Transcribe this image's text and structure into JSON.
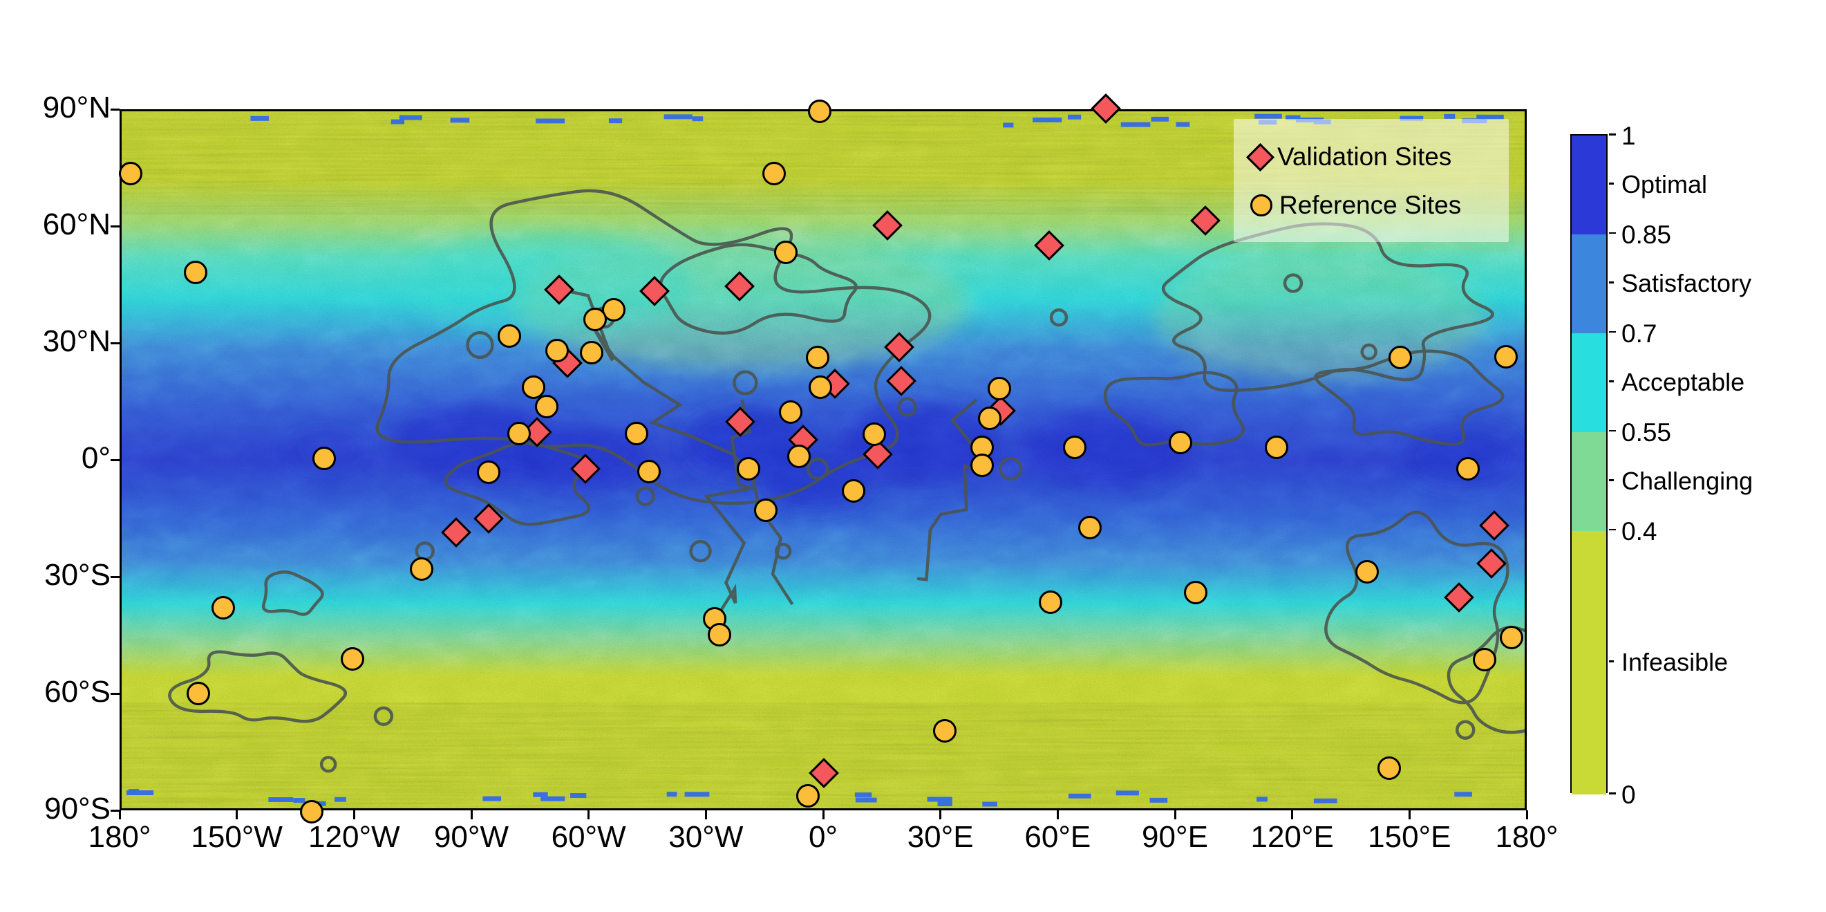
{
  "chart_data": {
    "type": "heatmap",
    "title": "",
    "description": "Global equirectangular suitability map with validation and reference site markers",
    "x_axis": {
      "range": [
        -180,
        180
      ],
      "tick_step_deg": 30,
      "ticks": [
        "180°",
        "150°W",
        "120°W",
        "90°W",
        "60°W",
        "30°W",
        "0°",
        "30°E",
        "60°E",
        "90°E",
        "120°E",
        "150°E",
        "180°"
      ]
    },
    "y_axis": {
      "range": [
        -90,
        90
      ],
      "tick_step_deg": 30,
      "ticks": [
        "90°N",
        "60°N",
        "30°N",
        "0°",
        "30°S",
        "60°S",
        "90°S"
      ]
    },
    "colorbar": {
      "range": [
        0,
        1
      ],
      "boundaries": [
        {
          "text": "1",
          "value": 1
        },
        {
          "text": "0.85",
          "value": 0.85
        },
        {
          "text": "0.7",
          "value": 0.7
        },
        {
          "text": "0.55",
          "value": 0.55
        },
        {
          "text": "0.4",
          "value": 0.4
        },
        {
          "text": "0",
          "value": 0
        }
      ],
      "bands": [
        {
          "label": "Optimal",
          "from": 0.85,
          "to": 1.0,
          "color": "#2b3ad6"
        },
        {
          "label": "Satisfactory",
          "from": 0.7,
          "to": 0.85,
          "color": "#3c86dd"
        },
        {
          "label": "Acceptable",
          "from": 0.55,
          "to": 0.7,
          "color": "#29dedf"
        },
        {
          "label": "Challenging",
          "from": 0.4,
          "to": 0.55,
          "color": "#7fda96"
        },
        {
          "label": "Infeasible",
          "from": 0.0,
          "to": 0.4,
          "color": "#c9da36"
        }
      ]
    },
    "legend": {
      "items": [
        {
          "label": "Validation Sites",
          "marker": "diamond",
          "color": "#f4585c"
        },
        {
          "label": "Reference Sites",
          "marker": "circle",
          "color": "#fcbe3a"
        }
      ]
    },
    "series": [
      {
        "name": "Validation Sites",
        "marker": "diamond",
        "color": "#f4585c",
        "points_lon_lat": [
          [
            72.4,
            90.2
          ],
          [
            97.8,
            61.4
          ],
          [
            16.4,
            60.2
          ],
          [
            57.9,
            55.0
          ],
          [
            -67.6,
            43.6
          ],
          [
            -43.2,
            43.4
          ],
          [
            -21.4,
            44.5
          ],
          [
            -65.5,
            24.9
          ],
          [
            19.4,
            29.0
          ],
          [
            19.9,
            20.3
          ],
          [
            3.0,
            19.6
          ],
          [
            45.5,
            12.6
          ],
          [
            -73.2,
            7.1
          ],
          [
            -21.2,
            9.8
          ],
          [
            -5.1,
            5.2
          ],
          [
            13.9,
            1.4
          ],
          [
            -60.9,
            -2.3
          ],
          [
            -93.9,
            -18.7
          ],
          [
            -85.6,
            -15.1
          ],
          [
            171.7,
            -16.9
          ],
          [
            171.0,
            -26.7
          ],
          [
            162.7,
            -35.4
          ],
          [
            0.2,
            -80.5
          ]
        ]
      },
      {
        "name": "Reference Sites",
        "marker": "circle",
        "color": "#fcbe3a",
        "points_lon_lat": [
          [
            -0.9,
            89.4
          ],
          [
            -12.5,
            73.5
          ],
          [
            -177.2,
            73.5
          ],
          [
            -160.6,
            48.1
          ],
          [
            -9.5,
            53.2
          ],
          [
            -53.5,
            38.6
          ],
          [
            -58.4,
            36.0
          ],
          [
            -80.3,
            31.7
          ],
          [
            -68.1,
            28.0
          ],
          [
            -59.3,
            27.6
          ],
          [
            -1.4,
            26.3
          ],
          [
            147.7,
            26.2
          ],
          [
            174.7,
            26.4
          ],
          [
            -74.1,
            18.7
          ],
          [
            -0.7,
            18.7
          ],
          [
            45.0,
            18.3
          ],
          [
            -70.8,
            13.7
          ],
          [
            -8.3,
            12.3
          ],
          [
            42.7,
            10.7
          ],
          [
            -127.6,
            0.4
          ],
          [
            -77.8,
            6.8
          ],
          [
            -47.8,
            6.8
          ],
          [
            -6.2,
            0.9
          ],
          [
            13.1,
            6.6
          ],
          [
            40.6,
            3.2
          ],
          [
            40.6,
            -1.4
          ],
          [
            64.4,
            3.2
          ],
          [
            91.4,
            4.5
          ],
          [
            116.0,
            3.2
          ],
          [
            -19.1,
            -2.3
          ],
          [
            -85.6,
            -3.2
          ],
          [
            -44.6,
            -3.0
          ],
          [
            7.8,
            -8.0
          ],
          [
            -14.6,
            -13.0
          ],
          [
            68.3,
            -17.4
          ],
          [
            165.0,
            -2.3
          ],
          [
            -102.7,
            -28.0
          ],
          [
            -153.5,
            -37.9
          ],
          [
            -27.7,
            -40.8
          ],
          [
            -26.5,
            -44.9
          ],
          [
            58.2,
            -36.5
          ],
          [
            95.3,
            -34.0
          ],
          [
            139.1,
            -28.8
          ],
          [
            -159.9,
            -60.0
          ],
          [
            -120.5,
            -51.1
          ],
          [
            -130.8,
            -90.4
          ],
          [
            -3.9,
            -86.3
          ],
          [
            31.2,
            -69.6
          ],
          [
            176.1,
            -45.7
          ],
          [
            169.2,
            -51.3
          ],
          [
            144.9,
            -79.2
          ]
        ]
      }
    ],
    "palette_note": "terrain classes from infeasible yellow-green to optimal dark blue"
  }
}
